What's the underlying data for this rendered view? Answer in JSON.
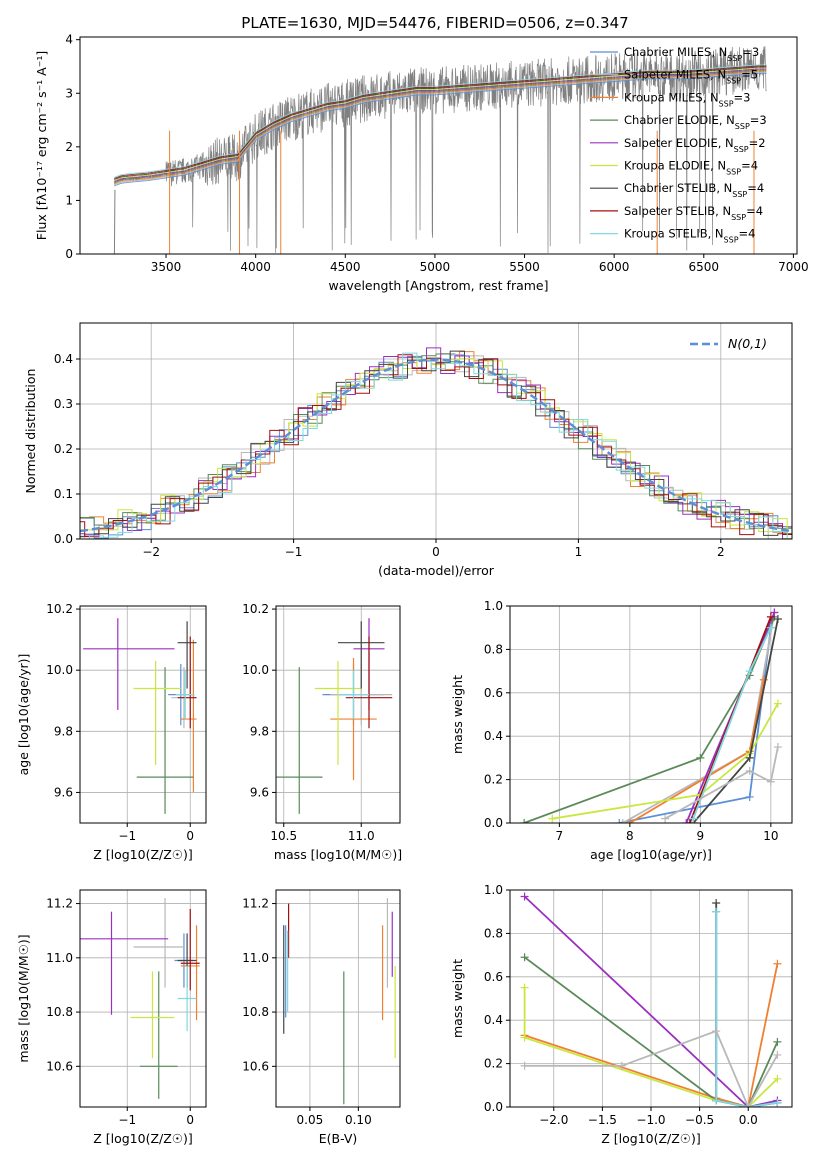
{
  "title": "PLATE=1630, MJD=54476, FIBERID=0506, z=0.347",
  "legend_series": [
    {
      "name": "Chabrier MILES",
      "nssp": "3",
      "color": "#5b8fd6"
    },
    {
      "name": "Salpeter MILES",
      "nssp": "5",
      "color": "#b8b8b8"
    },
    {
      "name": "Kroupa MILES",
      "nssp": "3",
      "color": "#f08030"
    },
    {
      "name": "Chabrier ELODIE",
      "nssp": "3",
      "color": "#5a8a5a"
    },
    {
      "name": "Salpeter ELODIE",
      "nssp": "2",
      "color": "#9b30c0"
    },
    {
      "name": "Kroupa ELODIE",
      "nssp": "4",
      "color": "#c8e840"
    },
    {
      "name": "Chabrier STELIB",
      "nssp": "4",
      "color": "#444444"
    },
    {
      "name": "Salpeter STELIB",
      "nssp": "4",
      "color": "#a01010"
    },
    {
      "name": "Kroupa STELIB",
      "nssp": "4",
      "color": "#80d8e0"
    }
  ],
  "chart_data": [
    {
      "type": "line",
      "id": "spectrum",
      "xlabel": "wavelength [Angstrom, rest frame]",
      "ylabel": "Flux [f_λ 10^-17 erg cm^-2 s^-1 A^-1]",
      "xlim": [
        3020,
        7020
      ],
      "ylim": [
        0,
        4.05
      ],
      "xticks": [
        3500,
        4000,
        4500,
        5000,
        5500,
        6000,
        6500,
        7000
      ],
      "yticks": [
        0,
        1,
        2,
        3,
        4
      ],
      "data_color": "#808080",
      "model_envelope": {
        "x": [
          3210,
          3250,
          3300,
          3400,
          3500,
          3600,
          3700,
          3800,
          3900,
          4000,
          4100,
          4200,
          4300,
          4400,
          4500,
          4600,
          4700,
          4800,
          4900,
          5000,
          5200,
          5400,
          5600,
          5800,
          6000,
          6200,
          6400,
          6600,
          6800,
          6850
        ],
        "y": [
          1.35,
          1.4,
          1.42,
          1.45,
          1.5,
          1.55,
          1.65,
          1.75,
          1.8,
          2.2,
          2.4,
          2.55,
          2.65,
          2.75,
          2.8,
          2.9,
          2.95,
          3.0,
          3.05,
          3.05,
          3.1,
          3.15,
          3.2,
          3.25,
          3.3,
          3.35,
          3.35,
          3.4,
          3.45,
          3.45
        ]
      }
    },
    {
      "type": "bar",
      "id": "residuals",
      "xlabel": "(data-model)/error",
      "ylabel": "Normed distribution",
      "xlim": [
        -2.5,
        2.5
      ],
      "ylim": [
        0,
        0.48
      ],
      "xticks": [
        -2,
        -1,
        0,
        1,
        2
      ],
      "yticks": [
        0.0,
        0.1,
        0.2,
        0.3,
        0.4
      ],
      "reference_label": "N(0,1)",
      "reference_color": "#5b8fd6"
    },
    {
      "type": "scatter",
      "id": "age-vs-Z",
      "xlabel": "Z [log10(Z/Z☉)]",
      "ylabel": "age [log10(age/yr)]",
      "xlim": [
        -1.75,
        0.25
      ],
      "ylim": [
        9.5,
        10.21
      ],
      "xticks": [
        -1,
        0
      ],
      "yticks": [
        9.6,
        9.8,
        10.0,
        10.2
      ],
      "points": [
        {
          "series": 0,
          "x": -0.15,
          "y": 9.92,
          "xerr": [
            0.2,
            0.2
          ],
          "yerr": [
            0.1,
            0.1
          ]
        },
        {
          "series": 1,
          "x": -0.1,
          "y": 9.91,
          "xerr": [
            0.2,
            0.2
          ],
          "yerr": [
            0.1,
            0.1
          ]
        },
        {
          "series": 2,
          "x": 0.05,
          "y": 9.84,
          "xerr": [
            0.2,
            0.05
          ],
          "yerr": [
            0.24,
            0.26
          ]
        },
        {
          "series": 3,
          "x": -0.4,
          "y": 9.65,
          "xerr": [
            0.45,
            0.45
          ],
          "yerr": [
            0.12,
            0.36
          ]
        },
        {
          "series": 4,
          "x": -1.15,
          "y": 10.07,
          "xerr": [
            0.55,
            0.9
          ],
          "yerr": [
            0.2,
            0.1
          ]
        },
        {
          "series": 5,
          "x": -0.55,
          "y": 9.94,
          "xerr": [
            0.35,
            0.4
          ],
          "yerr": [
            0.25,
            0.09
          ]
        },
        {
          "series": 6,
          "x": -0.05,
          "y": 10.09,
          "xerr": [
            0.15,
            0.15
          ],
          "yerr": [
            0.15,
            0.07
          ]
        },
        {
          "series": 7,
          "x": 0.0,
          "y": 9.91,
          "xerr": [
            0.2,
            0.1
          ],
          "yerr": [
            0.1,
            0.2
          ]
        },
        {
          "series": 8,
          "x": -0.08,
          "y": 9.92,
          "xerr": [
            0.15,
            0.15
          ],
          "yerr": [
            0.08,
            0.08
          ]
        }
      ]
    },
    {
      "type": "scatter",
      "id": "age-vs-mass",
      "xlabel": "mass [log10(M/M☉)]",
      "ylabel": "",
      "xlim": [
        10.45,
        11.25
      ],
      "ylim": [
        9.5,
        10.21
      ],
      "xticks": [
        10.5,
        11.0
      ],
      "yticks": [
        9.6,
        9.8,
        10.0,
        10.2
      ],
      "points": [
        {
          "series": 0,
          "x": 10.95,
          "y": 9.92,
          "xerr": [
            0.2,
            0.2
          ],
          "yerr": [
            0.1,
            0.1
          ]
        },
        {
          "series": 1,
          "x": 11.0,
          "y": 9.92,
          "xerr": [
            0.2,
            0.2
          ],
          "yerr": [
            0.1,
            0.1
          ]
        },
        {
          "series": 2,
          "x": 10.95,
          "y": 9.84,
          "xerr": [
            0.15,
            0.15
          ],
          "yerr": [
            0.2,
            0.2
          ]
        },
        {
          "series": 3,
          "x": 10.6,
          "y": 9.65,
          "xerr": [
            0.15,
            0.15
          ],
          "yerr": [
            0.12,
            0.36
          ]
        },
        {
          "series": 4,
          "x": 11.05,
          "y": 10.07,
          "xerr": [
            0.1,
            0.1
          ],
          "yerr": [
            0.2,
            0.1
          ]
        },
        {
          "series": 5,
          "x": 10.85,
          "y": 9.94,
          "xerr": [
            0.15,
            0.15
          ],
          "yerr": [
            0.25,
            0.09
          ]
        },
        {
          "series": 6,
          "x": 11.0,
          "y": 10.09,
          "xerr": [
            0.15,
            0.15
          ],
          "yerr": [
            0.15,
            0.07
          ]
        },
        {
          "series": 7,
          "x": 11.05,
          "y": 9.91,
          "xerr": [
            0.15,
            0.15
          ],
          "yerr": [
            0.1,
            0.2
          ]
        },
        {
          "series": 8,
          "x": 10.95,
          "y": 9.92,
          "xerr": [
            0.1,
            0.1
          ],
          "yerr": [
            0.08,
            0.08
          ]
        }
      ]
    },
    {
      "type": "line",
      "id": "massweight-vs-age",
      "xlabel": "age [log10(age/yr)]",
      "ylabel": "mass weight",
      "xlim": [
        6.3,
        10.3
      ],
      "ylim": [
        0,
        1.0
      ],
      "xticks": [
        7,
        8,
        9,
        10
      ],
      "yticks": [
        0.0,
        0.2,
        0.4,
        0.6,
        0.8,
        1.0
      ],
      "series": [
        {
          "series": 0,
          "x": [
            7.85,
            9.7,
            10.0
          ],
          "y": [
            0.0,
            0.12,
            0.9
          ]
        },
        {
          "series": 1,
          "x": [
            7.9,
            9.7,
            10.05
          ],
          "y": [
            0.0,
            0.33,
            0.97
          ]
        },
        {
          "series": 2,
          "x": [
            8.0,
            9.7,
            9.9
          ],
          "y": [
            0.0,
            0.33,
            0.66
          ]
        },
        {
          "series": 3,
          "x": [
            6.5,
            9.0,
            9.7,
            10.05
          ],
          "y": [
            0.0,
            0.3,
            0.68,
            0.95
          ]
        },
        {
          "series": 4,
          "x": [
            8.8,
            10.05
          ],
          "y": [
            0.0,
            0.97
          ]
        },
        {
          "series": 5,
          "x": [
            6.9,
            9.0,
            9.7,
            10.1
          ],
          "y": [
            0.02,
            0.13,
            0.32,
            0.55
          ]
        },
        {
          "series": 6,
          "x": [
            8.9,
            9.7,
            10.1
          ],
          "y": [
            0.0,
            0.3,
            0.94
          ]
        },
        {
          "series": 7,
          "x": [
            8.85,
            10.0
          ],
          "y": [
            0.0,
            0.95
          ]
        },
        {
          "series": 8,
          "x": [
            8.9,
            9.7,
            10.0
          ],
          "y": [
            0.02,
            0.7,
            0.9
          ]
        },
        {
          "series": 1,
          "x": [
            8.5,
            9.7,
            10.0,
            10.1
          ],
          "y": [
            0.02,
            0.24,
            0.19,
            0.35
          ]
        }
      ]
    },
    {
      "type": "scatter",
      "id": "mass-vs-Z",
      "xlabel": "Z [log10(Z/Z☉)]",
      "ylabel": "mass [log10(M/M☉)]",
      "xlim": [
        -1.75,
        0.25
      ],
      "ylim": [
        10.45,
        11.25
      ],
      "xticks": [
        -1,
        0
      ],
      "yticks": [
        10.6,
        10.8,
        11.0,
        11.2
      ],
      "points": [
        {
          "series": 0,
          "x": -0.1,
          "y": 10.99,
          "xerr": [
            0.15,
            0.15
          ],
          "yerr": [
            0.1,
            0.1
          ]
        },
        {
          "series": 1,
          "x": -0.4,
          "y": 11.04,
          "xerr": [
            0.5,
            0.3
          ],
          "yerr": [
            0.15,
            0.18
          ]
        },
        {
          "series": 2,
          "x": 0.1,
          "y": 10.97,
          "xerr": [
            0.25,
            0.05
          ],
          "yerr": [
            0.2,
            0.15
          ]
        },
        {
          "series": 3,
          "x": -0.5,
          "y": 10.6,
          "xerr": [
            0.3,
            0.3
          ],
          "yerr": [
            0.12,
            0.35
          ]
        },
        {
          "series": 4,
          "x": -1.25,
          "y": 11.07,
          "xerr": [
            0.5,
            0.9
          ],
          "yerr": [
            0.28,
            0.1
          ]
        },
        {
          "series": 5,
          "x": -0.6,
          "y": 10.78,
          "xerr": [
            0.35,
            0.35
          ],
          "yerr": [
            0.15,
            0.17
          ]
        },
        {
          "series": 6,
          "x": -0.05,
          "y": 10.99,
          "xerr": [
            0.15,
            0.15
          ],
          "yerr": [
            0.1,
            0.1
          ]
        },
        {
          "series": 7,
          "x": 0.0,
          "y": 10.98,
          "xerr": [
            0.15,
            0.15
          ],
          "yerr": [
            0.1,
            0.2
          ]
        },
        {
          "series": 8,
          "x": -0.05,
          "y": 10.85,
          "xerr": [
            0.15,
            0.15
          ],
          "yerr": [
            0.12,
            0.12
          ]
        }
      ]
    },
    {
      "type": "scatter",
      "id": "mass-vs-ebv",
      "xlabel": "E(B-V)",
      "ylabel": "",
      "xlim": [
        0.015,
        0.143
      ],
      "ylim": [
        10.45,
        11.25
      ],
      "xticks": [
        0.05,
        0.1
      ],
      "yticks": [
        10.6,
        10.8,
        11.0,
        11.2
      ],
      "points": [
        {
          "series": 0,
          "x": 0.025,
          "y": 10.95,
          "xerr": [
            0,
            0
          ],
          "yerr": [
            0.17,
            0.17
          ]
        },
        {
          "series": 1,
          "x": 0.13,
          "y": 11.04,
          "xerr": [
            0,
            0
          ],
          "yerr": [
            0.15,
            0.18
          ]
        },
        {
          "series": 2,
          "x": 0.125,
          "y": 10.97,
          "xerr": [
            0,
            0
          ],
          "yerr": [
            0.2,
            0.15
          ]
        },
        {
          "series": 3,
          "x": 0.085,
          "y": 10.7,
          "xerr": [
            0,
            0
          ],
          "yerr": [
            0.24,
            0.25
          ]
        },
        {
          "series": 4,
          "x": 0.135,
          "y": 11.05,
          "xerr": [
            0,
            0
          ],
          "yerr": [
            0.12,
            0.12
          ]
        },
        {
          "series": 5,
          "x": 0.138,
          "y": 10.8,
          "xerr": [
            0,
            0
          ],
          "yerr": [
            0.17,
            0.17
          ]
        },
        {
          "series": 6,
          "x": 0.023,
          "y": 10.92,
          "xerr": [
            0,
            0
          ],
          "yerr": [
            0.2,
            0.2
          ]
        },
        {
          "series": 7,
          "x": 0.028,
          "y": 11.1,
          "xerr": [
            0,
            0
          ],
          "yerr": [
            0.1,
            0.1
          ]
        },
        {
          "series": 8,
          "x": 0.027,
          "y": 10.95,
          "xerr": [
            0,
            0
          ],
          "yerr": [
            0.15,
            0.15
          ]
        }
      ]
    },
    {
      "type": "line",
      "id": "massweight-vs-Z",
      "xlabel": "Z [log10(Z/Z☉)]",
      "ylabel": "mass weight",
      "xlim": [
        -2.45,
        0.45
      ],
      "ylim": [
        0,
        1.0
      ],
      "xticks": [
        -2.0,
        -1.5,
        -1.0,
        -0.5,
        0.0
      ],
      "yticks": [
        0.0,
        0.2,
        0.4,
        0.6,
        0.8,
        1.0
      ],
      "series": [
        {
          "series": 0,
          "x": [
            -0.33,
            -0.33,
            0.0,
            0.3
          ],
          "y": [
            0.9,
            0.04,
            0.0,
            0.02
          ]
        },
        {
          "series": 4,
          "x": [
            -2.3,
            0.0,
            0.3
          ],
          "y": [
            0.97,
            0.0,
            0.03
          ]
        },
        {
          "series": 2,
          "x": [
            -2.3,
            -0.33,
            0.0,
            0.3
          ],
          "y": [
            0.33,
            0.04,
            0.0,
            0.66
          ]
        },
        {
          "series": 3,
          "x": [
            -2.3,
            -0.33,
            0.0,
            0.3
          ],
          "y": [
            0.69,
            0.03,
            0.0,
            0.3
          ]
        },
        {
          "series": 5,
          "x": [
            -2.3,
            -2.3,
            -0.33,
            0.0,
            0.3
          ],
          "y": [
            0.55,
            0.32,
            0.03,
            0.0,
            0.13
          ]
        },
        {
          "series": 6,
          "x": [
            -0.33,
            -0.33,
            0.0,
            0.3
          ],
          "y": [
            0.94,
            0.03,
            0.0,
            0.02
          ]
        },
        {
          "series": 8,
          "x": [
            -0.33,
            -0.33,
            0.0,
            0.3
          ],
          "y": [
            0.9,
            0.03,
            0.0,
            0.02
          ]
        },
        {
          "series": 1,
          "x": [
            -2.3,
            -1.3,
            -0.33,
            0.0,
            0.3
          ],
          "y": [
            0.19,
            0.19,
            0.35,
            0.0,
            0.24
          ]
        }
      ]
    }
  ]
}
